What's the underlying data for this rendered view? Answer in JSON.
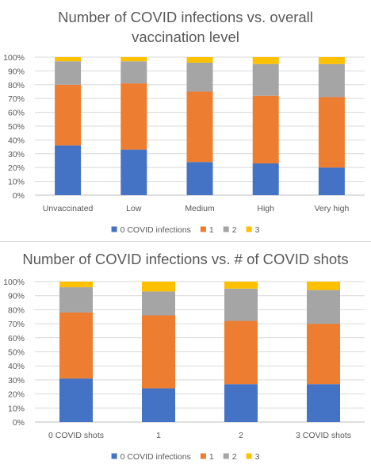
{
  "chart_data": [
    {
      "type": "bar",
      "stacked": true,
      "percent": true,
      "title": "Number of COVID infections vs. overall vaccination level",
      "title_lines": [
        "Number of COVID infections vs. overall",
        "vaccination level"
      ],
      "categories": [
        "Unvaccinated",
        "Low",
        "Medium",
        "High",
        "Very high"
      ],
      "series": [
        {
          "name": "0 COVID infections",
          "color": "#4472C4",
          "values": [
            36,
            33,
            24,
            23,
            20
          ]
        },
        {
          "name": "1",
          "color": "#ED7D31",
          "values": [
            44,
            48,
            51,
            49,
            51
          ]
        },
        {
          "name": "2",
          "color": "#A5A5A5",
          "values": [
            17,
            16,
            21,
            23,
            24
          ]
        },
        {
          "name": "3",
          "color": "#FFC000",
          "values": [
            3,
            3,
            4,
            5,
            5
          ]
        }
      ],
      "yticks": [
        "0%",
        "10%",
        "20%",
        "30%",
        "40%",
        "50%",
        "60%",
        "70%",
        "80%",
        "90%",
        "100%"
      ],
      "ylim": [
        0,
        100
      ],
      "legend": "bottom"
    },
    {
      "type": "bar",
      "stacked": true,
      "percent": true,
      "title": "Number of COVID infections vs. # of COVID shots",
      "title_lines": [
        "Number of COVID infections vs. # of COVID shots"
      ],
      "categories": [
        "0 COVID shots",
        "1",
        "2",
        "3 COVID shots"
      ],
      "series": [
        {
          "name": "0 COVID infections",
          "color": "#4472C4",
          "values": [
            31,
            24,
            27,
            27
          ]
        },
        {
          "name": "1",
          "color": "#ED7D31",
          "values": [
            47,
            52,
            45,
            43
          ]
        },
        {
          "name": "2",
          "color": "#A5A5A5",
          "values": [
            18,
            17,
            23,
            24
          ]
        },
        {
          "name": "3",
          "color": "#FFC000",
          "values": [
            4,
            7,
            5,
            6
          ]
        }
      ],
      "yticks": [
        "0%",
        "10%",
        "20%",
        "30%",
        "40%",
        "50%",
        "60%",
        "70%",
        "80%",
        "90%",
        "100%"
      ],
      "ylim": [
        0,
        100
      ],
      "legend": "bottom"
    }
  ]
}
